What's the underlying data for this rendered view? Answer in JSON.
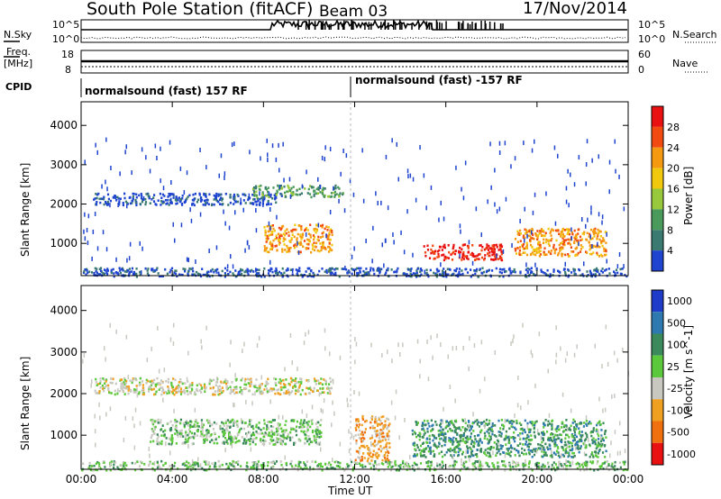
{
  "header": {
    "station": "South Pole Station (fitACF)",
    "beam": "Beam 03",
    "date": "17/Nov/2014"
  },
  "noise_panel": {
    "left_label": "N.Sky",
    "right_label": "N.Search",
    "left_ticks": [
      "10^5",
      "10^0"
    ],
    "right_ticks": [
      "10^5",
      "10^0"
    ]
  },
  "freq_panel": {
    "left_label_top": "Freq.",
    "left_label_unit": "[MHz]",
    "left_ticks": [
      "18",
      "8"
    ],
    "right_label": "Nave",
    "right_ticks": [
      "60",
      "0"
    ]
  },
  "cpid_panel": {
    "label": "CPID",
    "segments": [
      {
        "text": "normalsound (fast) 157 RF"
      },
      {
        "text": "normalsound (fast) -157 RF"
      }
    ]
  },
  "time_axis": {
    "label": "Time UT",
    "ticks": [
      "00:00",
      "04:00",
      "08:00",
      "12:00",
      "16:00",
      "20:00",
      "00:00"
    ]
  },
  "chart_data": [
    {
      "type": "heatmap",
      "panel": "power",
      "ylabel": "Slant Range [km]",
      "xlim": [
        "00:00",
        "24:00"
      ],
      "ylim": [
        180,
        4600
      ],
      "yticks": [
        1000,
        2000,
        3000,
        4000
      ],
      "colorbar": {
        "label": "Power [dB]",
        "ticks": [
          "28",
          "24",
          "20",
          "16",
          "12",
          "8",
          "4"
        ],
        "colors": [
          "#e81010",
          "#f24a10",
          "#f59a10",
          "#f0c80e",
          "#98c83c",
          "#4a9a5c",
          "#3a7a70",
          "#1e44d0"
        ]
      },
      "echo_regions": [
        {
          "t_start": 0.5,
          "t_end": 8.8,
          "r_start": 2000,
          "r_end": 2300,
          "level": "low"
        },
        {
          "t_start": 7.5,
          "t_end": 11.5,
          "r_start": 2200,
          "r_end": 2500,
          "level": "mid"
        },
        {
          "t_start": 8.0,
          "t_end": 11.0,
          "r_start": 800,
          "r_end": 1500,
          "level": "high"
        },
        {
          "t_start": 15.0,
          "t_end": 18.5,
          "r_start": 600,
          "r_end": 1000,
          "level": "max"
        },
        {
          "t_start": 19.0,
          "t_end": 23.0,
          "r_start": 700,
          "r_end": 1400,
          "level": "high"
        },
        {
          "t_start": 0.0,
          "t_end": 24.0,
          "r_start": 180,
          "r_end": 400,
          "level": "low"
        }
      ]
    },
    {
      "type": "heatmap",
      "panel": "velocity",
      "ylabel": "Slant Range [km]",
      "xlim": [
        "00:00",
        "24:00"
      ],
      "ylim": [
        180,
        4600
      ],
      "yticks": [
        1000,
        2000,
        3000,
        4000
      ],
      "colorbar": {
        "label": "Velocity [m s^-1]",
        "ticks": [
          "1000",
          "500",
          "100",
          "25",
          "-25",
          "-100",
          "-500",
          "-1000"
        ],
        "colors": [
          "#1e3cc8",
          "#2e7ab0",
          "#3c8a5c",
          "#5cc83c",
          "#c8c8c0",
          "#f0a020",
          "#f07010",
          "#e81010"
        ]
      },
      "echo_regions": [
        {
          "t_start": 0.5,
          "t_end": 11.0,
          "r_start": 2000,
          "r_end": 2400,
          "level": "neutral"
        },
        {
          "t_start": 3.0,
          "t_end": 10.5,
          "r_start": 800,
          "r_end": 1400,
          "level": "toward"
        },
        {
          "t_start": 12.0,
          "t_end": 13.5,
          "r_start": 400,
          "r_end": 1500,
          "level": "away"
        },
        {
          "t_start": 14.5,
          "t_end": 23.0,
          "r_start": 500,
          "r_end": 1400,
          "level": "positive"
        },
        {
          "t_start": 0.0,
          "t_end": 24.0,
          "r_start": 180,
          "r_end": 400,
          "level": "small"
        }
      ]
    }
  ]
}
